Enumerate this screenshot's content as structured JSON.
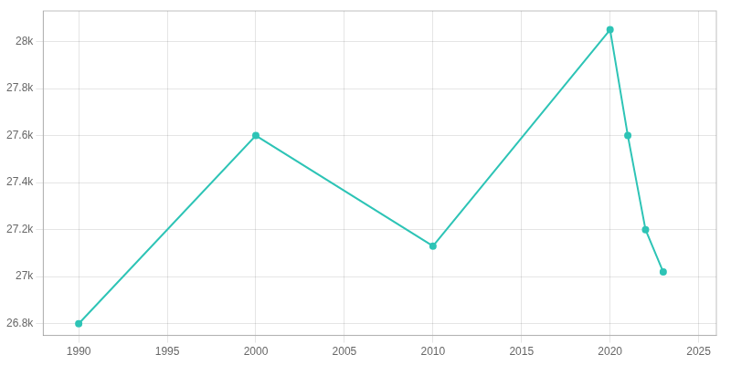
{
  "chart_data": {
    "type": "line",
    "x": [
      1990,
      2000,
      2010,
      2020,
      2021,
      2022,
      2023
    ],
    "values": [
      26800,
      27600,
      27130,
      28050,
      27600,
      27200,
      27020
    ],
    "color": "#2EC4B6",
    "marker": "circle",
    "xlim": [
      1988,
      2026
    ],
    "ylim": [
      26750,
      28130
    ],
    "xticks": [
      1990,
      1995,
      2000,
      2005,
      2010,
      2015,
      2020,
      2025
    ],
    "yticks": [
      {
        "value": 26800,
        "label": "26.8k"
      },
      {
        "value": 27000,
        "label": "27k"
      },
      {
        "value": 27200,
        "label": "27.2k"
      },
      {
        "value": 27400,
        "label": "27.4k"
      },
      {
        "value": 27600,
        "label": "27.6k"
      },
      {
        "value": 27800,
        "label": "27.8k"
      },
      {
        "value": 28000,
        "label": "28k"
      }
    ],
    "grid": true
  }
}
